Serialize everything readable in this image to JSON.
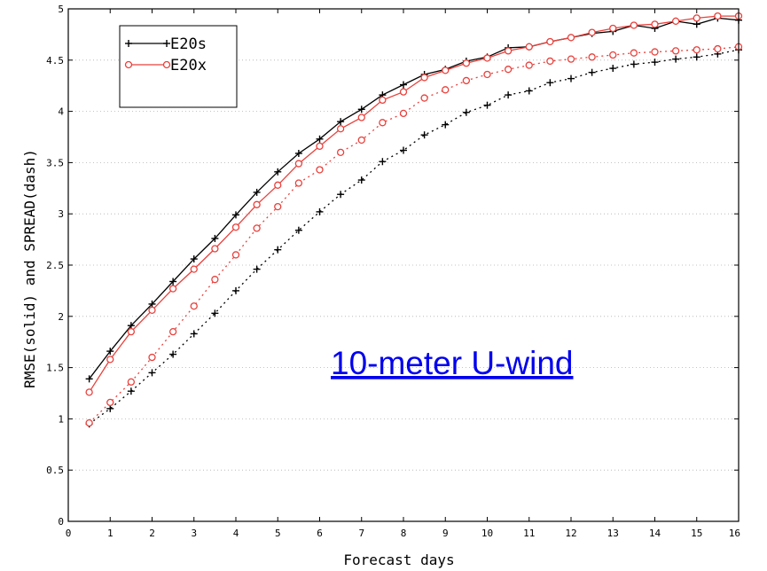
{
  "chart_data": {
    "type": "line",
    "xlabel": "Forecast days",
    "ylabel": "RMSE(solid) and SPREAD(dash)",
    "xlim": [
      0,
      16
    ],
    "ylim": [
      0,
      5
    ],
    "xticks": [
      "0",
      "1",
      "2",
      "3",
      "4",
      "5",
      "6",
      "7",
      "8",
      "9",
      "10",
      "11",
      "12",
      "13",
      "14",
      "15",
      "16"
    ],
    "yticks": [
      "0",
      "0.5",
      "1",
      "1.5",
      "2",
      "2.5",
      "3",
      "3.5",
      "4",
      "4.5",
      "5"
    ],
    "grid": true,
    "legend_position": "top-left",
    "annotation": "10-meter U-wind",
    "x": [
      0.5,
      1,
      1.5,
      2,
      2.5,
      3,
      3.5,
      4,
      4.5,
      5,
      5.5,
      6,
      6.5,
      7,
      7.5,
      8,
      8.5,
      9,
      9.5,
      10,
      10.5,
      11,
      11.5,
      12,
      12.5,
      13,
      13.5,
      14,
      14.5,
      15,
      15.5,
      16
    ],
    "series": [
      {
        "name": "E20s",
        "color": "#000000",
        "marker": "plus",
        "rmse": [
          1.39,
          1.66,
          1.91,
          2.12,
          2.34,
          2.56,
          2.76,
          2.99,
          3.21,
          3.41,
          3.59,
          3.73,
          3.9,
          4.02,
          4.16,
          4.26,
          4.36,
          4.41,
          4.49,
          4.53,
          4.62,
          4.63,
          4.68,
          4.72,
          4.76,
          4.78,
          4.84,
          4.81,
          4.88,
          4.85,
          4.91,
          4.89
        ],
        "spread": [
          0.95,
          1.1,
          1.27,
          1.45,
          1.63,
          1.83,
          2.03,
          2.25,
          2.46,
          2.65,
          2.84,
          3.02,
          3.19,
          3.33,
          3.51,
          3.62,
          3.77,
          3.87,
          3.99,
          4.06,
          4.16,
          4.2,
          4.28,
          4.32,
          4.38,
          4.42,
          4.46,
          4.48,
          4.51,
          4.53,
          4.56,
          4.6
        ]
      },
      {
        "name": "E20x",
        "color": "#e8413c",
        "marker": "circle",
        "rmse": [
          1.26,
          1.58,
          1.85,
          2.06,
          2.27,
          2.46,
          2.66,
          2.87,
          3.09,
          3.28,
          3.49,
          3.66,
          3.83,
          3.94,
          4.11,
          4.19,
          4.33,
          4.4,
          4.47,
          4.52,
          4.59,
          4.63,
          4.68,
          4.72,
          4.77,
          4.81,
          4.84,
          4.85,
          4.88,
          4.91,
          4.93,
          4.93
        ],
        "spread": [
          0.96,
          1.16,
          1.36,
          1.6,
          1.85,
          2.1,
          2.36,
          2.6,
          2.86,
          3.07,
          3.3,
          3.43,
          3.6,
          3.72,
          3.89,
          3.98,
          4.13,
          4.21,
          4.3,
          4.36,
          4.41,
          4.45,
          4.49,
          4.51,
          4.53,
          4.55,
          4.57,
          4.58,
          4.59,
          4.6,
          4.61,
          4.63
        ]
      }
    ]
  }
}
